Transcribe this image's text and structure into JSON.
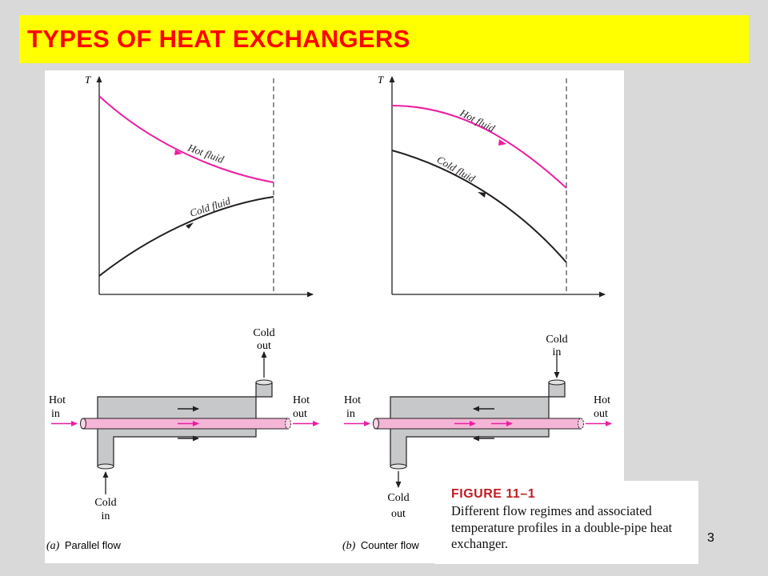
{
  "title": "TYPES OF HEAT EXCHANGERS",
  "page_number": "3",
  "colors": {
    "title_bg": "#ffff00",
    "title_text": "#ff0000",
    "hot_fluid": "#ec1ea2",
    "cold_fluid": "#231f20",
    "shell_fill": "#c7c8ca",
    "tube_fill": "#f5b5d6",
    "caption_heading": "#c01d24"
  },
  "figure": {
    "caption_heading": "FIGURE 11–1",
    "caption_text": "Different flow regimes and associated temperature profiles in a double-pipe heat exchanger."
  },
  "parallel": {
    "axis_label": "T",
    "hot_curve_label": "Hot fluid",
    "cold_curve_label": "Cold fluid",
    "cold_out": [
      "Cold",
      "out"
    ],
    "cold_in": [
      "Cold",
      "in"
    ],
    "hot_in": [
      "Hot",
      "in"
    ],
    "hot_out": [
      "Hot",
      "out"
    ],
    "panel_letter": "(a)",
    "panel_name": "Parallel flow"
  },
  "counter": {
    "axis_label": "T",
    "hot_curve_label": "Hot fluid",
    "cold_curve_label": "Cold fluid",
    "cold_in": [
      "Cold",
      "in"
    ],
    "cold_out": [
      "Cold",
      "out"
    ],
    "hot_in": [
      "Hot",
      "in"
    ],
    "hot_out": [
      "Hot",
      "out"
    ],
    "panel_letter": "(b)",
    "panel_name": "Counter flow"
  }
}
